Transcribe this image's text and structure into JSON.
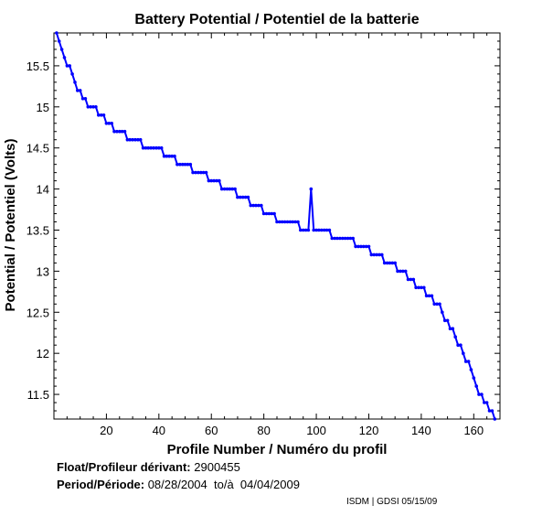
{
  "chart_data": {
    "type": "line",
    "title": "Battery Potential / Potentiel de la batterie",
    "xlabel": "Profile Number / Numéro du profil",
    "ylabel": "Potential / Potentiel (Volts)",
    "xlim": [
      0,
      170
    ],
    "ylim": [
      11.2,
      15.9
    ],
    "xticks": [
      20,
      40,
      60,
      80,
      100,
      120,
      140,
      160
    ],
    "yticks": [
      11.5,
      12,
      12.5,
      13,
      13.5,
      14,
      14.5,
      15,
      15.5
    ],
    "ytick_labels": [
      "11.5",
      "12",
      "12.5",
      "13",
      "13.5",
      "14",
      "14.5",
      "15",
      "15.5"
    ],
    "grid": false,
    "line_color": "#0000ff",
    "series": [
      {
        "points": [
          [
            1,
            15.9
          ],
          [
            2,
            15.8
          ],
          [
            3,
            15.7
          ],
          [
            4,
            15.6
          ],
          [
            5,
            15.5
          ],
          [
            6,
            15.5
          ],
          [
            7,
            15.4
          ],
          [
            8,
            15.3
          ],
          [
            9,
            15.2
          ],
          [
            10,
            15.2
          ],
          [
            11,
            15.1
          ],
          [
            12,
            15.1
          ],
          [
            13,
            15.0
          ],
          [
            16,
            15.0
          ],
          [
            17,
            14.9
          ],
          [
            19,
            14.9
          ],
          [
            20,
            14.8
          ],
          [
            22,
            14.8
          ],
          [
            23,
            14.7
          ],
          [
            27,
            14.7
          ],
          [
            28,
            14.6
          ],
          [
            33,
            14.6
          ],
          [
            34,
            14.5
          ],
          [
            41,
            14.5
          ],
          [
            42,
            14.4
          ],
          [
            46,
            14.4
          ],
          [
            47,
            14.3
          ],
          [
            52,
            14.3
          ],
          [
            53,
            14.2
          ],
          [
            58,
            14.2
          ],
          [
            59,
            14.1
          ],
          [
            63,
            14.1
          ],
          [
            64,
            14.0
          ],
          [
            69,
            14.0
          ],
          [
            70,
            13.9
          ],
          [
            74,
            13.9
          ],
          [
            75,
            13.8
          ],
          [
            79,
            13.8
          ],
          [
            80,
            13.7
          ],
          [
            84,
            13.7
          ],
          [
            85,
            13.6
          ],
          [
            93,
            13.6
          ],
          [
            94,
            13.5
          ],
          [
            97,
            13.5
          ],
          [
            98,
            14.0
          ],
          [
            99,
            13.5
          ],
          [
            105,
            13.5
          ],
          [
            106,
            13.4
          ],
          [
            114,
            13.4
          ],
          [
            115,
            13.3
          ],
          [
            120,
            13.3
          ],
          [
            121,
            13.2
          ],
          [
            125,
            13.2
          ],
          [
            126,
            13.1
          ],
          [
            130,
            13.1
          ],
          [
            131,
            13.0
          ],
          [
            134,
            13.0
          ],
          [
            135,
            12.9
          ],
          [
            137,
            12.9
          ],
          [
            138,
            12.8
          ],
          [
            141,
            12.8
          ],
          [
            142,
            12.7
          ],
          [
            144,
            12.7
          ],
          [
            145,
            12.6
          ],
          [
            147,
            12.6
          ],
          [
            148,
            12.5
          ],
          [
            149,
            12.4
          ],
          [
            150,
            12.4
          ],
          [
            151,
            12.3
          ],
          [
            152,
            12.3
          ],
          [
            153,
            12.2
          ],
          [
            154,
            12.1
          ],
          [
            155,
            12.1
          ],
          [
            156,
            12.0
          ],
          [
            157,
            11.9
          ],
          [
            158,
            11.9
          ],
          [
            159,
            11.8
          ],
          [
            160,
            11.7
          ],
          [
            161,
            11.6
          ],
          [
            162,
            11.5
          ],
          [
            163,
            11.5
          ],
          [
            164,
            11.4
          ],
          [
            165,
            11.4
          ],
          [
            166,
            11.3
          ],
          [
            167,
            11.3
          ],
          [
            168,
            11.2
          ]
        ]
      }
    ]
  },
  "info": {
    "float_label": "Float/Profileur dérivant:",
    "float_value": "2900455",
    "period_label": "Period/Période:",
    "period_value": "08/28/2004  to/à  04/04/2009"
  },
  "credit": "ISDM | GDSI 05/15/09"
}
